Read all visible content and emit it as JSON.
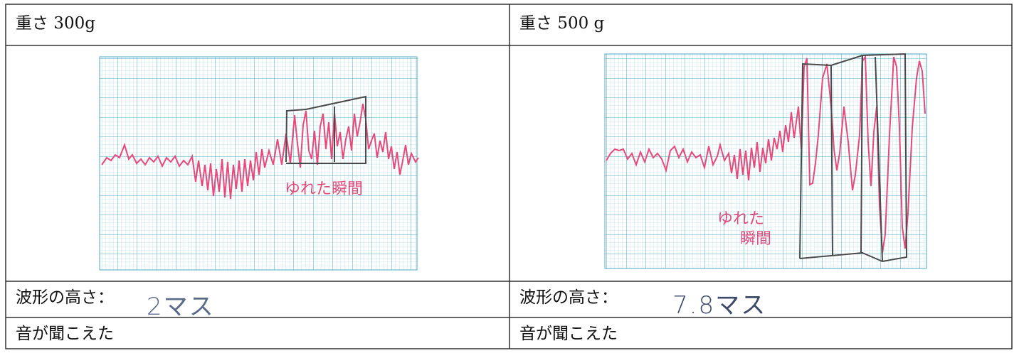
{
  "left": {
    "weight_label": "重さ 300g",
    "annotation": "ゆれた瞬間",
    "height_label": "波形の高さ：",
    "height_value": "2マス",
    "sound_label": "音が聞こえた"
  },
  "right": {
    "weight_label": "重さ 500 g",
    "annotation_line1": "ゆれた",
    "annotation_line2": "瞬間",
    "height_label": "波形の高さ：",
    "height_value": "7.8マス",
    "sound_label": "音が聞こえた"
  },
  "colors": {
    "grid": "#7cc8dc",
    "grid_major": "#4aa8c8",
    "waveform": "#e64a7a",
    "box": "#4a4a4a",
    "table_border": "#333333"
  }
}
